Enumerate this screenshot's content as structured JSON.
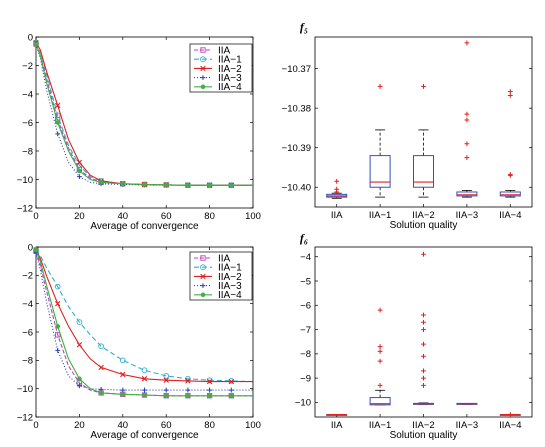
{
  "chart_data": [
    {
      "id": "tl",
      "type": "line",
      "title": "",
      "xlabel": "Average of convergence",
      "ylabel": "",
      "xlim": [
        0,
        100
      ],
      "ylim": [
        -12,
        0
      ],
      "xticks": [
        0,
        20,
        40,
        60,
        80,
        100
      ],
      "yticks": [
        0,
        -2,
        -4,
        -6,
        -8,
        -10,
        -12
      ],
      "legend_position": "top-right",
      "series": [
        {
          "name": "IIA",
          "color": "#c040c0",
          "dash": "4,2",
          "marker": "square",
          "x": [
            0,
            2,
            5,
            10,
            15,
            20,
            25,
            30,
            40,
            50,
            60,
            70,
            80,
            90,
            100
          ],
          "y": [
            -0.5,
            -1.2,
            -3.0,
            -5.8,
            -7.8,
            -9.3,
            -9.9,
            -10.2,
            -10.3,
            -10.35,
            -10.38,
            -10.4,
            -10.4,
            -10.4,
            -10.4
          ],
          "markers_x": [
            0,
            10,
            20,
            30,
            40,
            50,
            60,
            70,
            80,
            90
          ]
        },
        {
          "name": "IIA−1",
          "color": "#30b0d0",
          "dash": "5,3",
          "marker": "circle",
          "x": [
            0,
            2,
            5,
            10,
            15,
            20,
            25,
            30,
            40,
            50,
            60,
            70,
            80,
            90,
            100
          ],
          "y": [
            -0.4,
            -1.0,
            -2.7,
            -5.5,
            -7.6,
            -9.0,
            -9.8,
            -10.1,
            -10.3,
            -10.35,
            -10.38,
            -10.4,
            -10.4,
            -10.4,
            -10.4
          ],
          "markers_x": [
            0,
            10,
            20,
            30,
            40,
            50,
            60,
            70,
            80,
            90
          ]
        },
        {
          "name": "IIA−2",
          "color": "#e02020",
          "dash": "",
          "marker": "x",
          "x": [
            0,
            2,
            5,
            10,
            15,
            20,
            25,
            30,
            40,
            50,
            60,
            70,
            80,
            90,
            100
          ],
          "y": [
            -0.4,
            -0.9,
            -2.5,
            -4.8,
            -7.2,
            -8.8,
            -9.7,
            -10.1,
            -10.3,
            -10.35,
            -10.38,
            -10.4,
            -10.4,
            -10.4,
            -10.4
          ],
          "markers_x": [
            0,
            10,
            20,
            30,
            40,
            50,
            60,
            70,
            80,
            90
          ]
        },
        {
          "name": "IIA−3",
          "color": "#2040c0",
          "dash": "1,2",
          "marker": "plus",
          "x": [
            0,
            2,
            5,
            10,
            15,
            20,
            25,
            30,
            40,
            50,
            60,
            70,
            80,
            90,
            100
          ],
          "y": [
            -0.5,
            -1.5,
            -3.8,
            -6.8,
            -8.8,
            -9.8,
            -10.2,
            -10.3,
            -10.35,
            -10.38,
            -10.4,
            -10.4,
            -10.4,
            -10.4,
            -10.4
          ],
          "markers_x": [
            0,
            10,
            20,
            30,
            40,
            50,
            60,
            70,
            80,
            90
          ]
        },
        {
          "name": "IIA−4",
          "color": "#40b040",
          "dash": "",
          "marker": "dot",
          "x": [
            0,
            2,
            5,
            10,
            15,
            20,
            25,
            30,
            40,
            50,
            60,
            70,
            80,
            90,
            100
          ],
          "y": [
            -0.5,
            -1.3,
            -3.3,
            -6.0,
            -8.0,
            -9.4,
            -10.0,
            -10.2,
            -10.3,
            -10.35,
            -10.38,
            -10.4,
            -10.4,
            -10.4,
            -10.4
          ],
          "markers_x": [
            0,
            10,
            20,
            30,
            40,
            50,
            60,
            70,
            80,
            90
          ]
        }
      ]
    },
    {
      "id": "tr",
      "type": "box",
      "title": "f₅",
      "xlabel": "Solution quality",
      "ylabel": "",
      "categories": [
        "IIA",
        "IIA−1",
        "IIA−2",
        "IIA−3",
        "IIA−4"
      ],
      "ylim": [
        -10.405,
        -10.362
      ],
      "yticks": [
        -10.37,
        -10.38,
        -10.39,
        -10.4
      ],
      "box_color": "#3050c0",
      "median_color": "#e02020",
      "outlier_color": "#e02020",
      "boxes": [
        {
          "q1": -10.4025,
          "median": -10.4022,
          "q3": -10.4018,
          "whisker_low": -10.4028,
          "whisker_high": -10.4015,
          "outliers": [
            -10.3985,
            -10.4005,
            -10.4012
          ]
        },
        {
          "q1": -10.4,
          "median": -10.3987,
          "q3": -10.392,
          "whisker_low": -10.4025,
          "whisker_high": -10.3855,
          "outliers": [
            -10.3745
          ]
        },
        {
          "q1": -10.4,
          "median": -10.3987,
          "q3": -10.392,
          "whisker_low": -10.4025,
          "whisker_high": -10.3855,
          "outliers": [
            -10.3745
          ]
        },
        {
          "q1": -10.4022,
          "median": -10.4019,
          "q3": -10.4012,
          "whisker_low": -10.4025,
          "whisker_high": -10.4008,
          "outliers": [
            -10.3635,
            -10.3815,
            -10.383,
            -10.389,
            -10.3925
          ]
        },
        {
          "q1": -10.4022,
          "median": -10.4019,
          "q3": -10.4012,
          "whisker_low": -10.4025,
          "whisker_high": -10.4008,
          "outliers": [
            -10.3758,
            -10.3768,
            -10.3968,
            -10.397
          ]
        }
      ]
    },
    {
      "id": "bl",
      "type": "line",
      "title": "",
      "xlabel": "Average of convergence",
      "ylabel": "",
      "xlim": [
        0,
        100
      ],
      "ylim": [
        -12,
        0
      ],
      "xticks": [
        0,
        20,
        40,
        60,
        80,
        100
      ],
      "yticks": [
        0,
        -2,
        -4,
        -6,
        -8,
        -10,
        -12
      ],
      "legend_position": "top-right",
      "series": [
        {
          "name": "IIA",
          "color": "#c040c0",
          "dash": "4,2",
          "marker": "square",
          "x": [
            0,
            2,
            5,
            10,
            15,
            20,
            25,
            30,
            40,
            50,
            60,
            70,
            80,
            90,
            100
          ],
          "y": [
            -0.3,
            -1.3,
            -3.2,
            -6.2,
            -8.4,
            -9.6,
            -10.1,
            -10.3,
            -10.4,
            -10.45,
            -10.5,
            -10.5,
            -10.5,
            -10.5,
            -10.5
          ],
          "markers_x": [
            0,
            10,
            20,
            30,
            40,
            50,
            60,
            70,
            80,
            90
          ]
        },
        {
          "name": "IIA−1",
          "color": "#30b0d0",
          "dash": "5,3",
          "marker": "circle",
          "x": [
            0,
            2,
            5,
            10,
            15,
            20,
            25,
            30,
            40,
            50,
            60,
            70,
            80,
            90,
            100
          ],
          "y": [
            -0.2,
            -0.6,
            -1.5,
            -2.8,
            -4.2,
            -5.3,
            -6.2,
            -7.0,
            -8.0,
            -8.7,
            -9.1,
            -9.3,
            -9.4,
            -9.45,
            -9.5
          ],
          "markers_x": [
            0,
            10,
            20,
            30,
            40,
            50,
            60,
            70,
            80,
            90
          ]
        },
        {
          "name": "IIA−2",
          "color": "#e02020",
          "dash": "",
          "marker": "x",
          "x": [
            0,
            2,
            5,
            10,
            15,
            20,
            25,
            30,
            40,
            50,
            60,
            70,
            80,
            90,
            100
          ],
          "y": [
            -0.2,
            -0.8,
            -2.1,
            -4.0,
            -5.6,
            -6.9,
            -7.9,
            -8.5,
            -9.0,
            -9.3,
            -9.4,
            -9.45,
            -9.5,
            -9.5,
            -9.5
          ],
          "markers_x": [
            0,
            10,
            20,
            30,
            40,
            50,
            60,
            70,
            80,
            90
          ]
        },
        {
          "name": "IIA−3",
          "color": "#2040c0",
          "dash": "1,2",
          "marker": "plus",
          "x": [
            0,
            2,
            5,
            10,
            15,
            20,
            25,
            30,
            40,
            50,
            60,
            70,
            80,
            90,
            100
          ],
          "y": [
            -0.4,
            -1.6,
            -4.0,
            -7.3,
            -9.1,
            -9.8,
            -10.0,
            -10.05,
            -10.1,
            -10.1,
            -10.1,
            -10.1,
            -10.1,
            -10.1,
            -10.1
          ],
          "markers_x": [
            0,
            10,
            20,
            30,
            40,
            50,
            60,
            70,
            80,
            90
          ]
        },
        {
          "name": "IIA−4",
          "color": "#40b040",
          "dash": "",
          "marker": "dot",
          "x": [
            0,
            2,
            5,
            10,
            15,
            20,
            25,
            30,
            40,
            50,
            60,
            70,
            80,
            90,
            100
          ],
          "y": [
            -0.2,
            -1.0,
            -2.8,
            -5.6,
            -7.9,
            -9.3,
            -10.0,
            -10.3,
            -10.4,
            -10.45,
            -10.5,
            -10.5,
            -10.5,
            -10.5,
            -10.5
          ],
          "markers_x": [
            0,
            10,
            20,
            30,
            40,
            50,
            60,
            70,
            80,
            90
          ]
        }
      ]
    },
    {
      "id": "br",
      "type": "box",
      "title": "f₆",
      "xlabel": "Solution quality",
      "ylabel": "",
      "categories": [
        "IIA",
        "IIA−1",
        "IIA−2",
        "IIA−3",
        "IIA−4"
      ],
      "ylim": [
        -10.6,
        -3.6
      ],
      "yticks": [
        -4,
        -5,
        -6,
        -7,
        -8,
        -9,
        -10
      ],
      "box_color": "#3050c0",
      "median_color": "#e02020",
      "outlier_color": "#e02020",
      "boxes": [
        {
          "q1": -10.5,
          "median": -10.5,
          "q3": -10.5,
          "whisker_low": -10.5,
          "whisker_high": -10.5,
          "outliers": []
        },
        {
          "q1": -10.1,
          "median": -10.05,
          "q3": -9.8,
          "whisker_low": -10.1,
          "whisker_high": -9.5,
          "outliers": [
            -6.2,
            -7.7,
            -7.9,
            -8.3,
            -9.3
          ]
        },
        {
          "q1": -10.08,
          "median": -10.06,
          "q3": -10.04,
          "whisker_low": -10.08,
          "whisker_high": -10.02,
          "outliers": [
            -3.9,
            -6.4,
            -6.7,
            -7.0,
            -7.6,
            -8.1,
            -8.7,
            -9.0,
            -9.3
          ]
        },
        {
          "q1": -10.08,
          "median": -10.06,
          "q3": -10.04,
          "whisker_low": -10.08,
          "whisker_high": -10.04,
          "outliers": []
        },
        {
          "q1": -10.5,
          "median": -10.5,
          "q3": -10.5,
          "whisker_low": -10.5,
          "whisker_high": -10.5,
          "outliers": [
            -10.5
          ]
        }
      ]
    }
  ],
  "labels": {
    "f5_title": "f₅",
    "f6_title": "f₆"
  }
}
